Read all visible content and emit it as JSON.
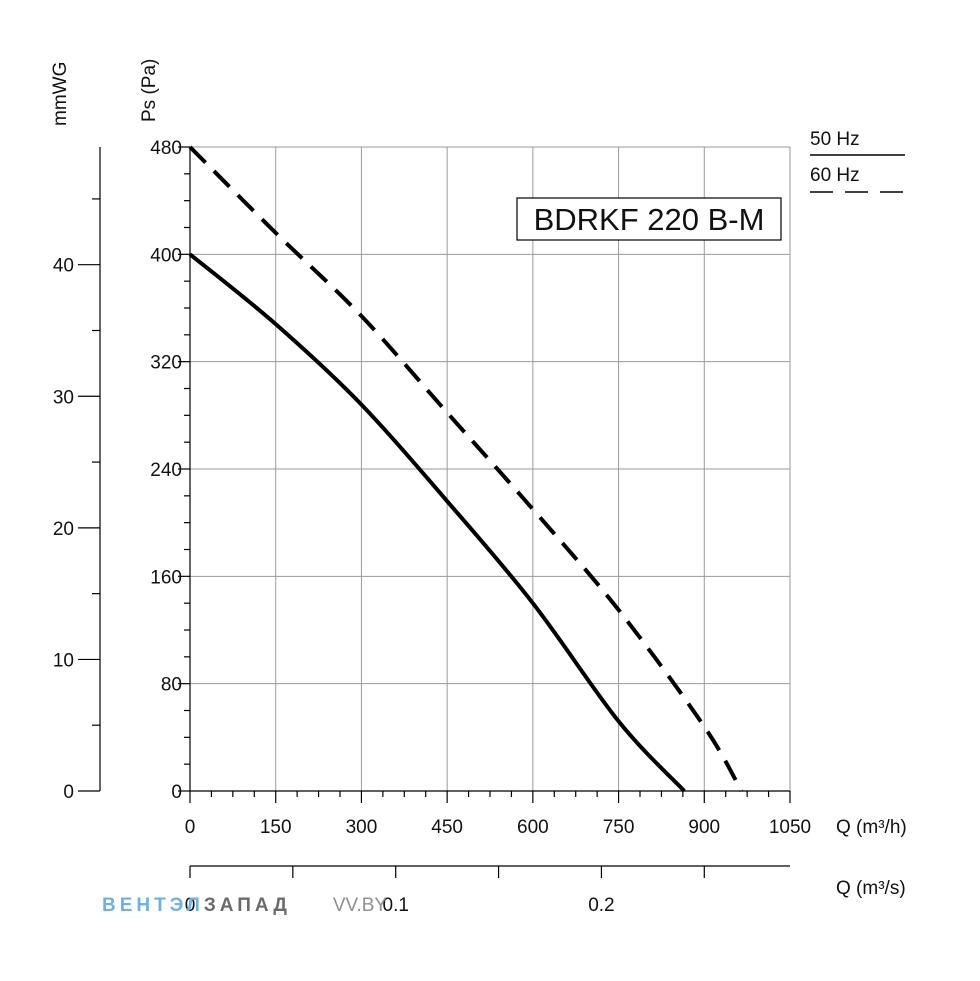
{
  "chart_data": {
    "type": "line",
    "title": "BDRKF 220 B-M",
    "xlabel": "Q (m³/h)",
    "ylabel": "Ps (Pa)",
    "secondary_ylabel": "mmWG",
    "secondary_xlabel": "Q (m³/s)",
    "xlim": [
      0,
      1050
    ],
    "ylim": [
      0,
      480
    ],
    "x_ticks": [
      "0",
      "150",
      "300",
      "450",
      "600",
      "750",
      "900",
      "1050"
    ],
    "y_ticks": [
      "0",
      "80",
      "160",
      "240",
      "320",
      "400",
      "480"
    ],
    "mmwg_ticks": [
      "0",
      "10",
      "20",
      "30",
      "40"
    ],
    "m3s_ticks": [
      "0",
      "0.1",
      "0.2"
    ],
    "legend": [
      "50 Hz",
      "60 Hz"
    ],
    "series": [
      {
        "name": "50 Hz",
        "style": "solid",
        "x": [
          0,
          150,
          300,
          450,
          600,
          750,
          865
        ],
        "y": [
          400,
          348,
          288,
          216,
          140,
          52,
          0
        ]
      },
      {
        "name": "60 Hz",
        "style": "dashed",
        "x": [
          0,
          150,
          300,
          450,
          600,
          750,
          900,
          965
        ],
        "y": [
          480,
          416,
          354,
          282,
          210,
          135,
          48,
          0
        ]
      }
    ]
  },
  "watermark": {
    "part1": "ВЕНТ",
    "part2": "ЭЛ",
    "part3": "ЗАПАД",
    "part4": "VV.BY"
  }
}
